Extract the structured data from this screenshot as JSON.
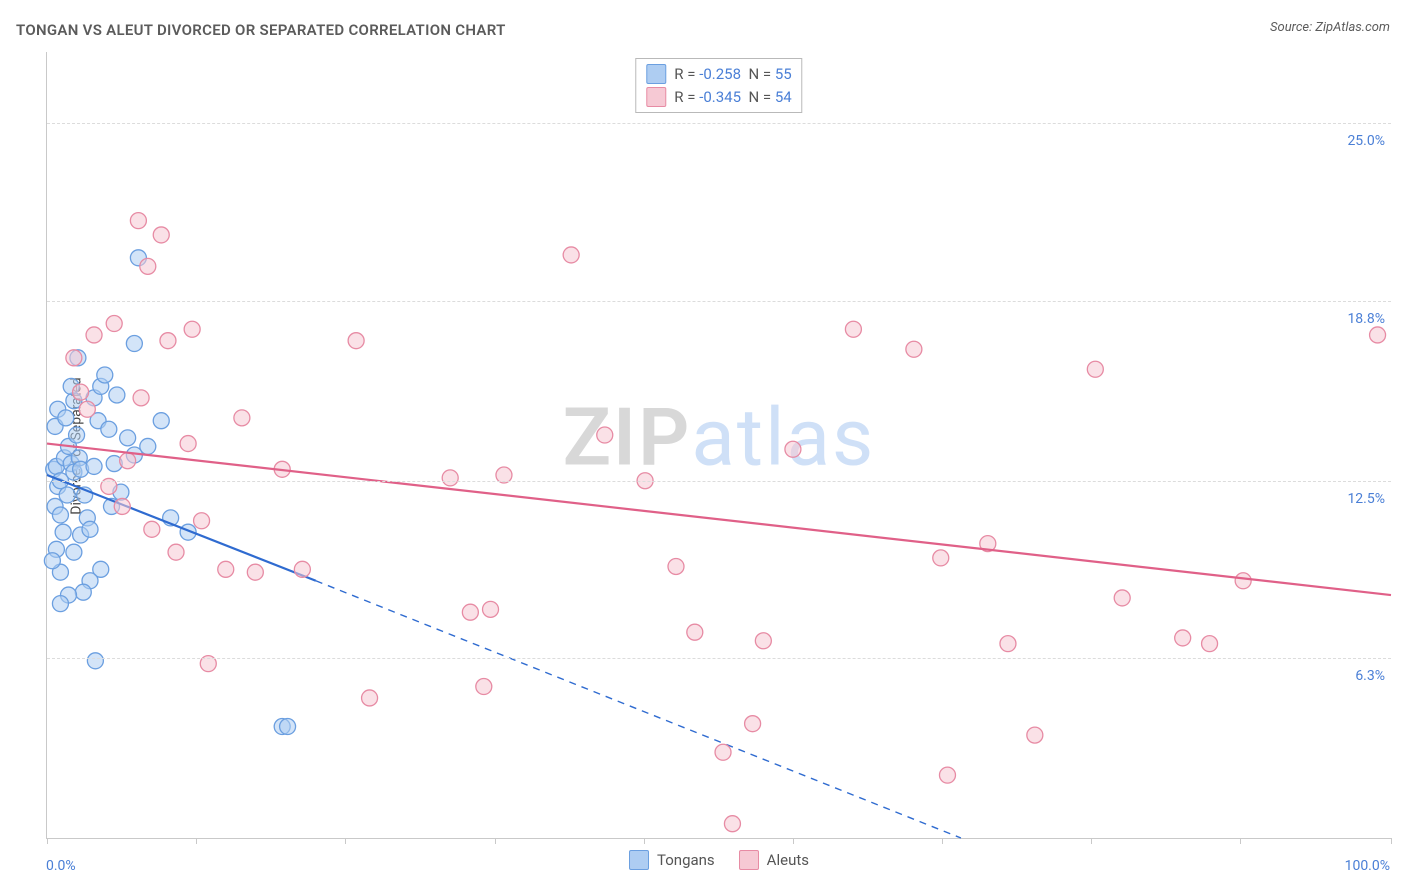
{
  "header": {
    "title": "TONGAN VS ALEUT DIVORCED OR SEPARATED CORRELATION CHART",
    "source": "Source: ZipAtlas.com"
  },
  "watermark": {
    "bold": "ZIP",
    "light": "atlas"
  },
  "chart": {
    "type": "scatter",
    "background_color": "#ffffff",
    "grid_color": "#dcdcdc",
    "axis_color": "#c9c9c9",
    "label_color": "#4a7fd6",
    "label_fontsize": 14,
    "yaxis_title": "Divorced or Separated",
    "xaxis_min_label": "0.0%",
    "xaxis_max_label": "100.0%",
    "xlim": [
      0,
      100
    ],
    "ylim": [
      0,
      27.5
    ],
    "xtick_positions": [
      0,
      11.1,
      22.2,
      33.3,
      44.4,
      55.5,
      66.6,
      77.7,
      88.8,
      100
    ],
    "ytick_positions": [
      6.3,
      12.5,
      18.8,
      25.0
    ],
    "ytick_labels": [
      "6.3%",
      "12.5%",
      "18.8%",
      "25.0%"
    ],
    "marker_radius": 8,
    "marker_opacity": 0.55,
    "series": [
      {
        "name": "Tongans",
        "fill": "#aecdf2",
        "stroke": "#6b9fe0",
        "trend_color": "#2f6bd0",
        "trend_width": 2.2,
        "trend_solid": [
          [
            0,
            12.7
          ],
          [
            20,
            9.0
          ]
        ],
        "trend_dashed": [
          [
            20,
            9.0
          ],
          [
            68,
            0
          ]
        ],
        "R": "-0.258",
        "N": "55",
        "points": [
          [
            0.5,
            12.9
          ],
          [
            0.7,
            13.0
          ],
          [
            0.8,
            12.3
          ],
          [
            0.6,
            11.6
          ],
          [
            1.0,
            12.5
          ],
          [
            1.3,
            13.3
          ],
          [
            1.5,
            12.0
          ],
          [
            1.6,
            13.7
          ],
          [
            1.8,
            13.1
          ],
          [
            1.0,
            11.3
          ],
          [
            1.2,
            10.7
          ],
          [
            0.7,
            10.1
          ],
          [
            1.0,
            9.3
          ],
          [
            2.0,
            12.8
          ],
          [
            2.4,
            13.3
          ],
          [
            2.5,
            12.9
          ],
          [
            2.8,
            12.0
          ],
          [
            3.0,
            11.2
          ],
          [
            2.0,
            10.0
          ],
          [
            2.5,
            10.6
          ],
          [
            3.2,
            10.8
          ],
          [
            3.5,
            13.0
          ],
          [
            3.8,
            14.6
          ],
          [
            3.5,
            15.4
          ],
          [
            4.0,
            15.8
          ],
          [
            4.3,
            16.2
          ],
          [
            2.0,
            15.3
          ],
          [
            2.2,
            14.1
          ],
          [
            4.6,
            14.3
          ],
          [
            5.0,
            13.1
          ],
          [
            5.5,
            12.1
          ],
          [
            6.0,
            14.0
          ],
          [
            6.5,
            13.4
          ],
          [
            5.2,
            15.5
          ],
          [
            4.8,
            11.6
          ],
          [
            4.0,
            9.4
          ],
          [
            3.2,
            9.0
          ],
          [
            2.7,
            8.6
          ],
          [
            1.6,
            8.5
          ],
          [
            1.0,
            8.2
          ],
          [
            0.6,
            14.4
          ],
          [
            0.8,
            15.0
          ],
          [
            1.4,
            14.7
          ],
          [
            1.8,
            15.8
          ],
          [
            2.3,
            16.8
          ],
          [
            7.5,
            13.7
          ],
          [
            8.5,
            14.6
          ],
          [
            6.8,
            20.3
          ],
          [
            6.5,
            17.3
          ],
          [
            9.2,
            11.2
          ],
          [
            10.5,
            10.7
          ],
          [
            3.6,
            6.2
          ],
          [
            17.5,
            3.9
          ],
          [
            17.9,
            3.9
          ],
          [
            0.4,
            9.7
          ]
        ]
      },
      {
        "name": "Aleuts",
        "fill": "#f6c9d4",
        "stroke": "#e78ba4",
        "trend_color": "#e06088",
        "trend_width": 2.2,
        "trend_solid": [
          [
            0,
            13.8
          ],
          [
            100,
            8.5
          ]
        ],
        "trend_dashed": null,
        "R": "-0.345",
        "N": "54",
        "points": [
          [
            2.0,
            16.8
          ],
          [
            2.5,
            15.6
          ],
          [
            3.0,
            15.0
          ],
          [
            3.5,
            17.6
          ],
          [
            5.0,
            18.0
          ],
          [
            6.8,
            21.6
          ],
          [
            7.5,
            20.0
          ],
          [
            8.5,
            21.1
          ],
          [
            9.0,
            17.4
          ],
          [
            7.0,
            15.4
          ],
          [
            10.5,
            13.8
          ],
          [
            6.0,
            13.2
          ],
          [
            4.6,
            12.3
          ],
          [
            5.6,
            11.6
          ],
          [
            7.8,
            10.8
          ],
          [
            9.6,
            10.0
          ],
          [
            10.8,
            17.8
          ],
          [
            11.5,
            11.1
          ],
          [
            13.3,
            9.4
          ],
          [
            14.5,
            14.7
          ],
          [
            12.0,
            6.1
          ],
          [
            15.5,
            9.3
          ],
          [
            17.5,
            12.9
          ],
          [
            19.0,
            9.4
          ],
          [
            23.0,
            17.4
          ],
          [
            24.0,
            4.9
          ],
          [
            30.0,
            12.6
          ],
          [
            31.5,
            7.9
          ],
          [
            32.5,
            5.3
          ],
          [
            33.0,
            8.0
          ],
          [
            34.0,
            12.7
          ],
          [
            39.0,
            20.4
          ],
          [
            41.5,
            14.1
          ],
          [
            44.5,
            12.5
          ],
          [
            46.8,
            9.5
          ],
          [
            48.2,
            7.2
          ],
          [
            50.3,
            3.0
          ],
          [
            51.0,
            0.5
          ],
          [
            52.5,
            4.0
          ],
          [
            53.3,
            6.9
          ],
          [
            55.5,
            13.6
          ],
          [
            60.0,
            17.8
          ],
          [
            64.5,
            17.1
          ],
          [
            66.5,
            9.8
          ],
          [
            67.0,
            2.2
          ],
          [
            70.0,
            10.3
          ],
          [
            71.5,
            6.8
          ],
          [
            73.5,
            3.6
          ],
          [
            78.0,
            16.4
          ],
          [
            80.0,
            8.4
          ],
          [
            84.5,
            7.0
          ],
          [
            86.5,
            6.8
          ],
          [
            89.0,
            9.0
          ],
          [
            99.0,
            17.6
          ]
        ]
      }
    ]
  }
}
